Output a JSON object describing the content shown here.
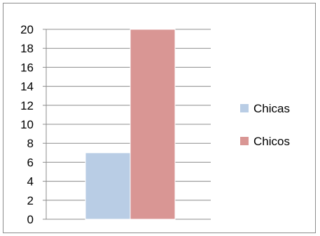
{
  "chart_data": {
    "type": "bar",
    "title": "",
    "xlabel": "",
    "ylabel": "",
    "ylim": [
      0,
      20
    ],
    "yticks": [
      0,
      2,
      4,
      6,
      8,
      10,
      12,
      14,
      16,
      18,
      20
    ],
    "grid": "horizontal",
    "legend_position": "right",
    "categories": [
      ""
    ],
    "series": [
      {
        "name": "Chicas",
        "values": [
          7
        ],
        "color": "#b9cde5"
      },
      {
        "name": "Chicos",
        "values": [
          20
        ],
        "color": "#d99694"
      }
    ]
  }
}
